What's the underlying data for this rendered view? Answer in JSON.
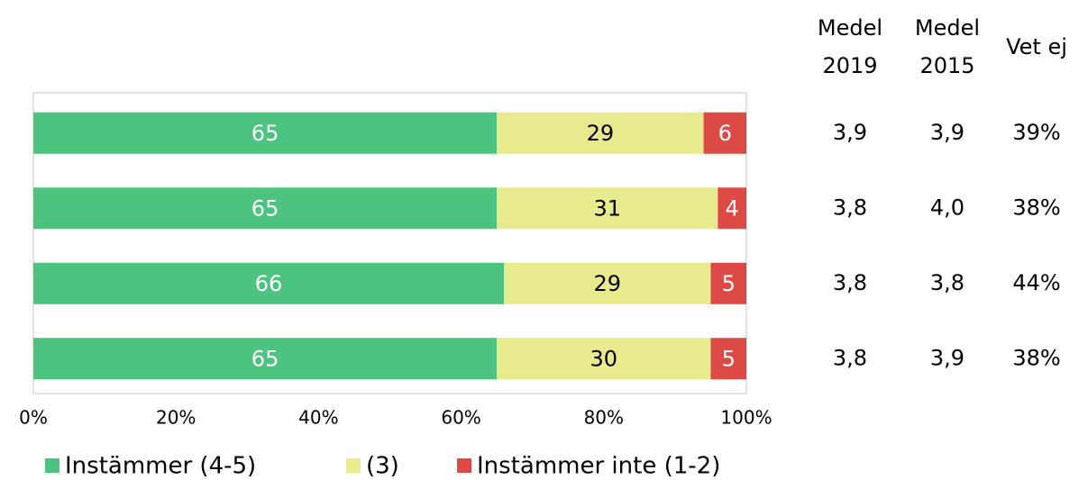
{
  "chart_data": {
    "type": "bar",
    "orientation": "horizontal",
    "stacked": true,
    "categories": [
      null,
      null,
      null,
      null
    ],
    "series": [
      {
        "name": "Instämmer (4-5)",
        "color": "#4cc47f",
        "label_color": "#ffffff",
        "values": [
          65,
          65,
          66,
          65
        ]
      },
      {
        "name": "(3)",
        "color": "#e8ea8e",
        "label_color": "#000000",
        "values": [
          29,
          31,
          29,
          30
        ]
      },
      {
        "name": "Instämmer inte (1-2)",
        "color": "#dc4a46",
        "label_color": "#ffffff",
        "values": [
          6,
          4,
          5,
          5
        ]
      }
    ],
    "xlim": [
      0,
      100
    ],
    "xticks": [
      {
        "value": 0,
        "label": "0%"
      },
      {
        "value": 20,
        "label": "20%"
      },
      {
        "value": 40,
        "label": "40%"
      },
      {
        "value": 60,
        "label": "60%"
      },
      {
        "value": 80,
        "label": "80%"
      },
      {
        "value": 100,
        "label": "100%"
      }
    ],
    "grid": false,
    "legend": "bottom",
    "table": {
      "headers": [
        [
          "Medel",
          "2019"
        ],
        [
          "Medel",
          "2015"
        ],
        [
          "Vet ej"
        ]
      ],
      "rows": [
        [
          "3,9",
          "3,9",
          "39%"
        ],
        [
          "3,8",
          "4,0",
          "38%"
        ],
        [
          "3,8",
          "3,8",
          "44%"
        ],
        [
          "3,8",
          "3,9",
          "38%"
        ]
      ]
    }
  }
}
